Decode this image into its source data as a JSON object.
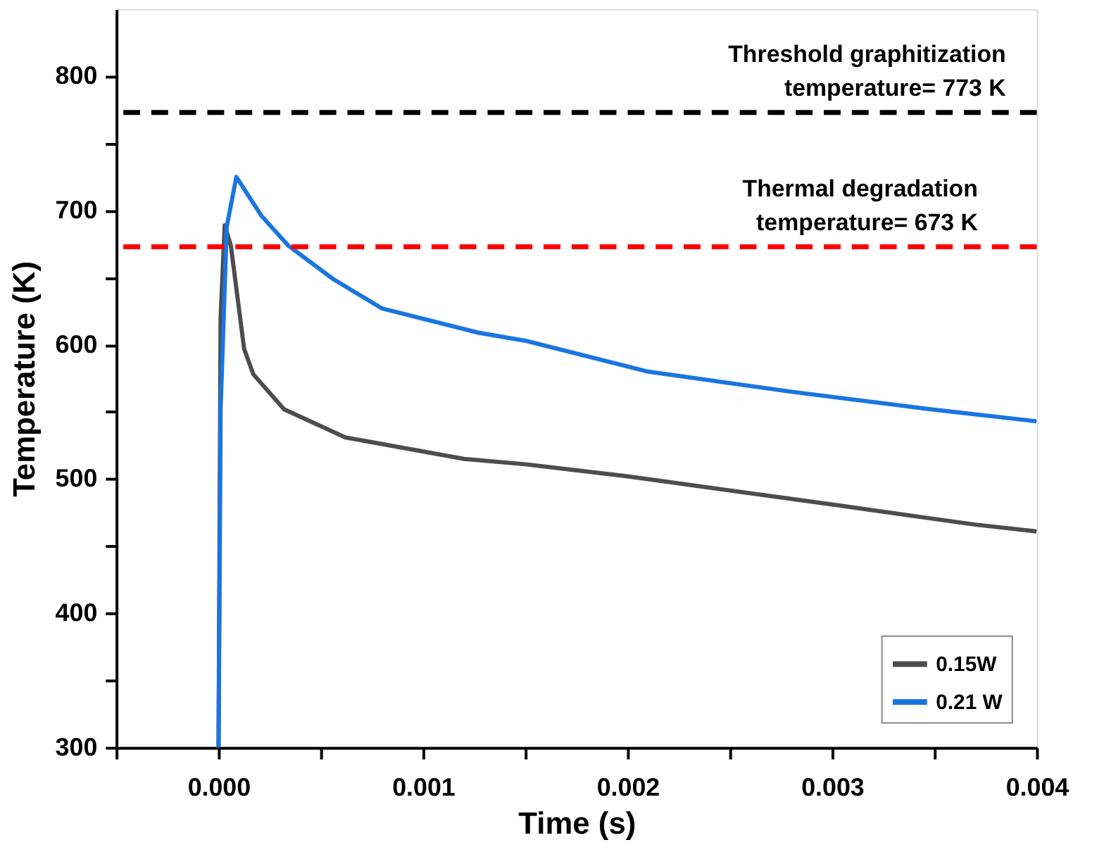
{
  "chart_data": {
    "type": "line",
    "xlabel": "Time (s)",
    "ylabel": "Temperature (K)",
    "xlim": [
      -0.0005,
      0.004
    ],
    "ylim": [
      300,
      850
    ],
    "xticks": [
      {
        "value": -0.0005,
        "label": null
      },
      {
        "value": 0,
        "label": "0.000"
      },
      {
        "value": 0.0005,
        "label": null
      },
      0.001,
      {
        "value": 0.0015,
        "label": null
      },
      0.002,
      {
        "value": 0.0025,
        "label": null
      },
      0.003,
      {
        "value": 0.0035,
        "label": null
      },
      0.004
    ],
    "yticks": [
      300,
      {
        "value": 350,
        "label": null
      },
      400,
      {
        "value": 450,
        "label": null
      },
      500,
      {
        "value": 550,
        "label": null
      },
      600,
      {
        "value": 650,
        "label": null
      },
      700,
      {
        "value": 750,
        "label": null
      },
      800
    ],
    "series": [
      {
        "name": "0.15W",
        "color": "#4d4d4d",
        "x": [
          0,
          1e-05,
          3e-05,
          6e-05,
          0.000125,
          0.00017,
          0.00032,
          0.00062,
          0.0012,
          0.0015,
          0.002,
          0.003,
          0.0037,
          0.004
        ],
        "values": [
          300,
          620,
          689,
          674,
          597,
          578,
          552,
          531,
          515,
          511,
          502,
          481,
          466,
          461
        ]
      },
      {
        "name": "0.21 W",
        "color": "#1a75e0",
        "x": [
          0,
          1e-05,
          4e-05,
          8.7e-05,
          0.00021,
          0.00034,
          0.00056,
          0.0008,
          0.00127,
          0.0015,
          0.0021,
          0.0028,
          0.00348,
          0.004
        ],
        "values": [
          300,
          552,
          688,
          725,
          696,
          674,
          649,
          627,
          609,
          603,
          580,
          565,
          552,
          543
        ]
      }
    ],
    "ref_lines": [
      {
        "axis": "y",
        "value": 773,
        "label": "Threshold graphitization\ntemperature= 773 K",
        "color": "#000000",
        "line_style": "dashed"
      },
      {
        "axis": "y",
        "value": 673,
        "label": "Thermal degradation\ntemperature= 673 K",
        "color": "#ff0000",
        "line_style": "dashed"
      }
    ],
    "legend": "bottom right",
    "grid": false,
    "line_style": "solid",
    "marker": "none"
  }
}
